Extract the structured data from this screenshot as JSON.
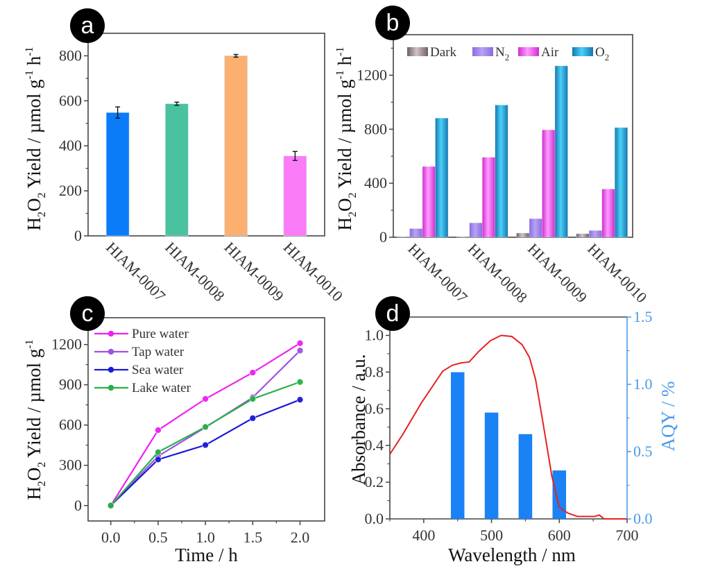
{
  "chart_data": [
    {
      "panel": "a",
      "type": "bar",
      "title": "",
      "xlabel": "",
      "ylabel": "H2O2 Yield / µmol g-1 h-1",
      "ylabel_parts": {
        "main": "H",
        "sub1": "2",
        "mid": "O",
        "sub2": "2",
        "rest": " Yield / µmol g",
        "sup1": "-1",
        "tail": " h",
        "sup2": "-1"
      },
      "categories": [
        "HIAM-0007",
        "HIAM-0008",
        "HIAM-0009",
        "HIAM-0010"
      ],
      "values": [
        548,
        587,
        800,
        355
      ],
      "errors": [
        25,
        7,
        6,
        20
      ],
      "colors": [
        "#0a7cf7",
        "#4ac2a0",
        "#fbb070",
        "#fb7cf7"
      ],
      "ylim": [
        0,
        900
      ],
      "yticks": [
        0,
        200,
        400,
        600,
        800
      ],
      "yticks_minor": [
        100,
        300,
        500,
        700
      ],
      "grid": false,
      "badge": "a"
    },
    {
      "panel": "b",
      "type": "bar",
      "title": "",
      "xlabel": "",
      "ylabel": "H2O2 Yield / µmol g-1 h-1",
      "ylabel_parts": {
        "main": "H",
        "sub1": "2",
        "mid": "O",
        "sub2": "2",
        "rest": " Yield / µmol g",
        "sup1": "-1",
        "tail": " h",
        "sup2": "-1"
      },
      "categories": [
        "HIAM-0007",
        "HIAM-0008",
        "HIAM-0009",
        "HIAM-0010"
      ],
      "series": [
        {
          "name": "Dark",
          "label_main": "Dark",
          "label_sub": "",
          "values": [
            5,
            5,
            31,
            26
          ],
          "color_light": "#d0c4ca",
          "color_dark": "#6e5e68"
        },
        {
          "name": "N2",
          "label_main": "N",
          "label_sub": "2",
          "values": [
            64,
            106,
            137,
            50
          ],
          "color_light": "#b8a2f4",
          "color_dark": "#8a6ce0"
        },
        {
          "name": "Air",
          "label_main": "Air",
          "label_sub": "",
          "values": [
            524,
            592,
            795,
            357
          ],
          "color_light": "#ff9cff",
          "color_dark": "#d02cd0"
        },
        {
          "name": "O2",
          "label_main": "O",
          "label_sub": "2",
          "values": [
            882,
            979,
            1269,
            812
          ],
          "color_light": "#4cd0f8",
          "color_dark": "#1478b0"
        }
      ],
      "ylim": [
        0,
        1500
      ],
      "yticks": [
        0,
        400,
        800,
        1200
      ],
      "yticks_minor": [
        200,
        600,
        1000,
        1400
      ],
      "legend_position": "top-left (horizontal)",
      "grid": false,
      "badge": "b"
    },
    {
      "panel": "c",
      "type": "line",
      "title": "",
      "xlabel": "Time / h",
      "ylabel": "H2O2 Yield / µmol g-1",
      "ylabel_parts": {
        "main": "H",
        "sub1": "2",
        "mid": "O",
        "sub2": "2",
        "rest": " Yield / µmol g",
        "sup1": "-1"
      },
      "x": [
        0.0,
        0.5,
        1.0,
        1.5,
        2.0
      ],
      "series": [
        {
          "name": "Pure water",
          "values": [
            0,
            562,
            795,
            991,
            1210
          ],
          "color": "#f020f0"
        },
        {
          "name": "Tap water",
          "values": [
            0,
            368,
            583,
            806,
            1155
          ],
          "color": "#a050e0"
        },
        {
          "name": "Sea water",
          "values": [
            0,
            343,
            451,
            651,
            789
          ],
          "color": "#1a1ad8"
        },
        {
          "name": "Lake water",
          "values": [
            0,
            398,
            586,
            795,
            921
          ],
          "color": "#28b048"
        }
      ],
      "xlim": [
        -0.24,
        2.26
      ],
      "ylim": [
        -115,
        1400
      ],
      "xticks": [
        "0.0",
        "0.5",
        "1.0",
        "1.5",
        "2.0"
      ],
      "xticks_minor": [
        0.25,
        0.75,
        1.25,
        1.75
      ],
      "yticks": [
        0,
        300,
        600,
        900,
        1200
      ],
      "yticks_minor": [
        150,
        450,
        750,
        1050
      ],
      "legend_position": "top-left",
      "grid": false,
      "badge": "c"
    },
    {
      "panel": "d",
      "type": "line",
      "title": "",
      "xlabel": "Wavelength / nm",
      "ylabel": "Absorbance / a.u.",
      "ylabel_right": "AQY / %",
      "xlim": [
        350,
        700
      ],
      "ylim": [
        0,
        1.1
      ],
      "ylim_right": [
        0,
        1.5
      ],
      "xticks": [
        400,
        500,
        600,
        700
      ],
      "xticks_minor": [
        350,
        450,
        550,
        650
      ],
      "yticks": [
        "0.0",
        "0.2",
        "0.4",
        "0.6",
        "0.8",
        "1.0"
      ],
      "yticks_minor": [
        0.1,
        0.3,
        0.5,
        0.7,
        0.9
      ],
      "yticks_right": [
        "0.0",
        "0.5",
        "1.0",
        "1.5"
      ],
      "yticks_right_minor": [
        0.25,
        0.75,
        1.25
      ],
      "absorbance": {
        "color": "#e82020",
        "x": [
          350,
          369,
          397,
          418,
          428,
          442,
          455,
          467,
          481,
          498,
          514,
          530,
          545,
          556,
          565,
          572,
          580,
          589,
          600,
          613,
          627,
          652,
          659,
          666,
          700
        ],
        "y": [
          0.352,
          0.46,
          0.635,
          0.75,
          0.805,
          0.837,
          0.85,
          0.855,
          0.912,
          0.97,
          1.0,
          0.994,
          0.95,
          0.88,
          0.76,
          0.61,
          0.434,
          0.233,
          0.063,
          0.031,
          0.013,
          0.013,
          0.021,
          0.0,
          0.0
        ]
      },
      "aqy_bars": {
        "color": "#1a82f5",
        "x": [
          450,
          500,
          550,
          600
        ],
        "values": [
          1.09,
          0.79,
          0.63,
          0.36
        ],
        "width_nm": 20
      },
      "right_axis_color": "#4a9ae8",
      "grid": false,
      "badge": "d"
    }
  ]
}
